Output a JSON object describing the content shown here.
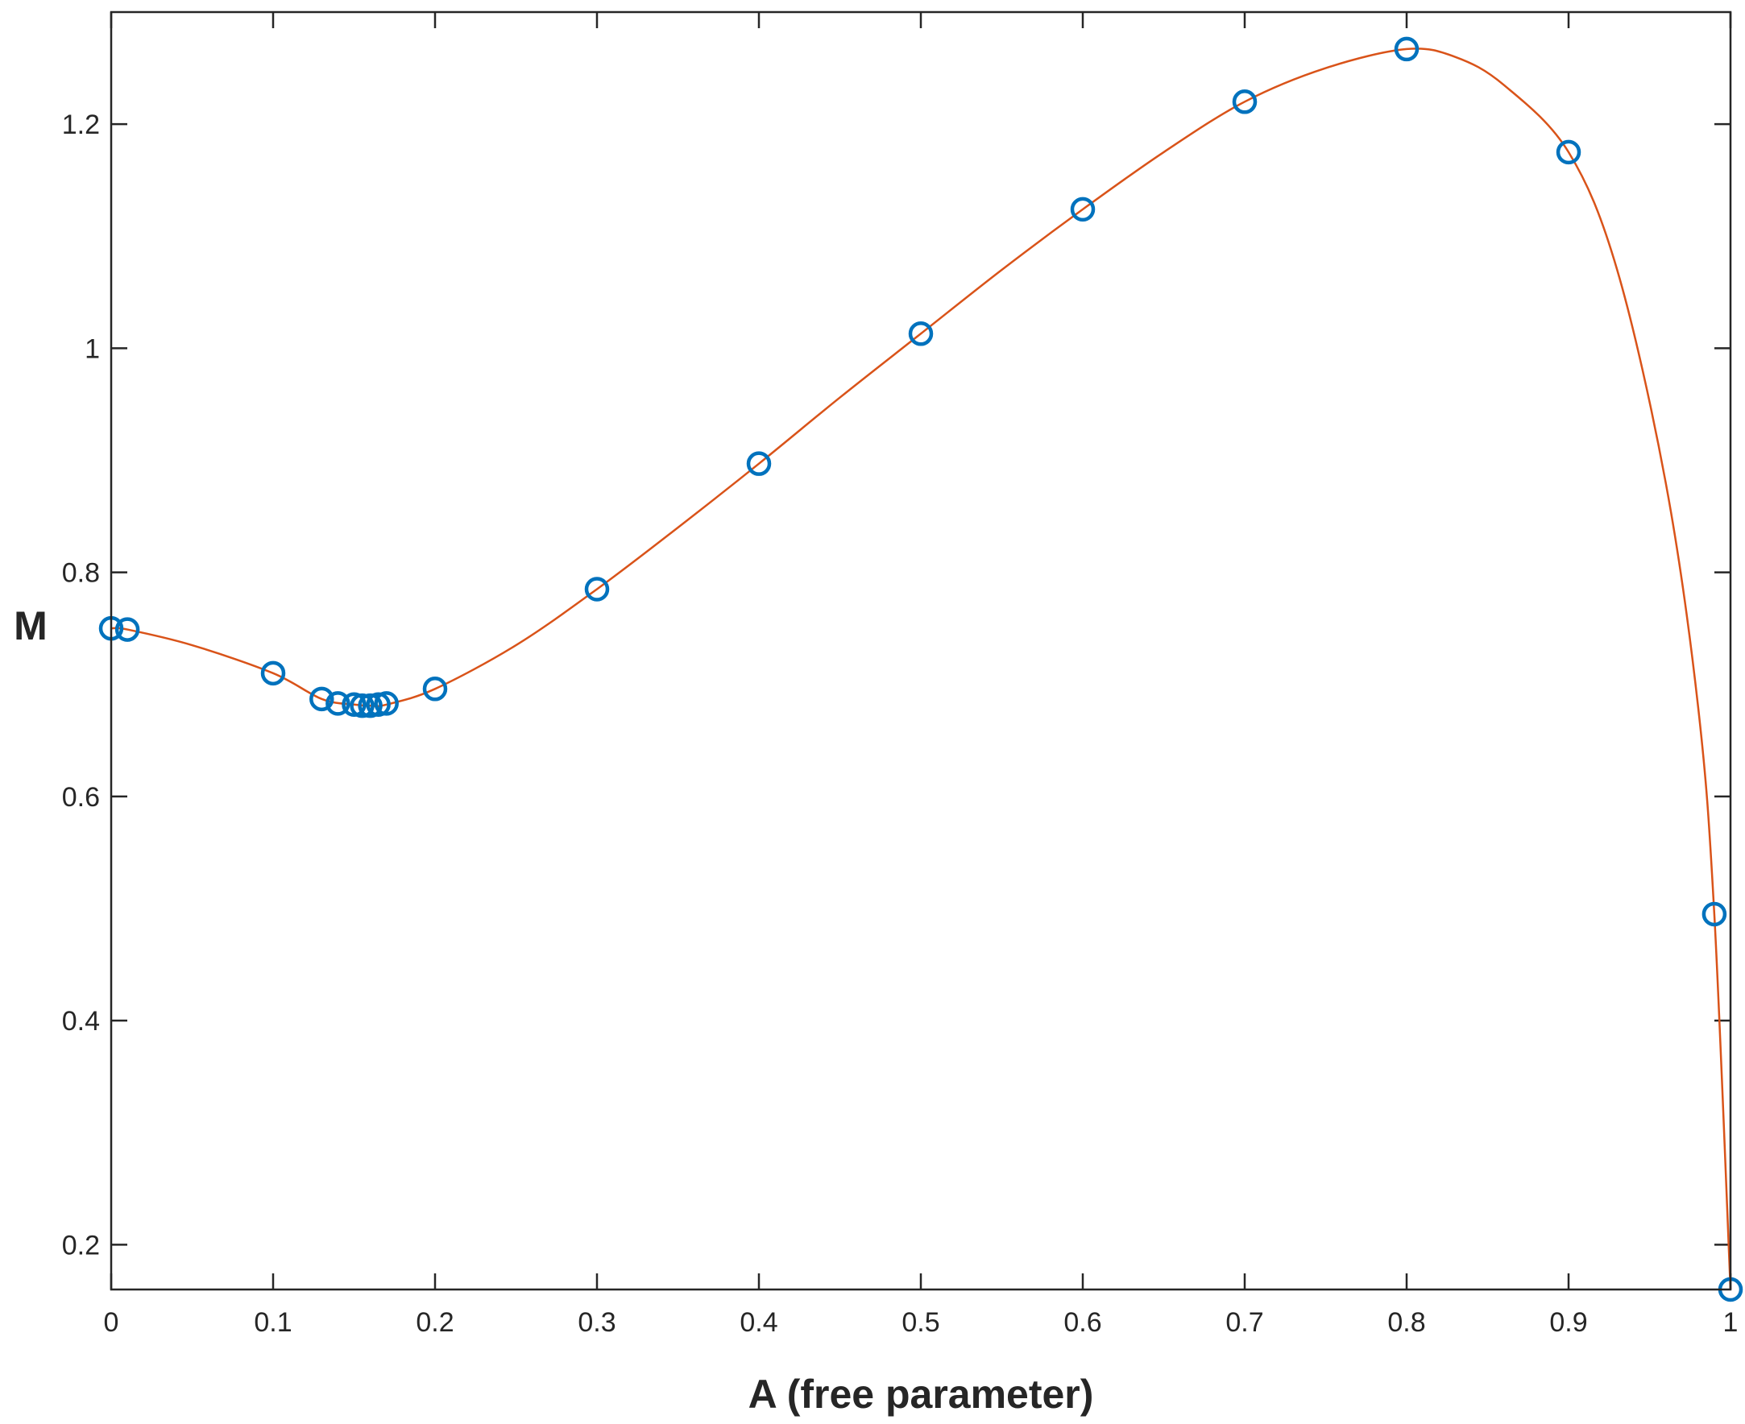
{
  "chart_data": {
    "type": "scatter",
    "title": "",
    "xlabel": "A (free parameter)",
    "ylabel": "M",
    "xlim": [
      0,
      1
    ],
    "ylim": [
      0.16,
      1.3
    ],
    "x_ticks": [
      0,
      0.1,
      0.2,
      0.3,
      0.4,
      0.5,
      0.6,
      0.7,
      0.8,
      0.9,
      1
    ],
    "x_tick_labels": [
      "0",
      "0.1",
      "0.2",
      "0.3",
      "0.4",
      "0.5",
      "0.6",
      "0.7",
      "0.8",
      "0.9",
      "1"
    ],
    "y_ticks": [
      0.2,
      0.4,
      0.6,
      0.8,
      1.0,
      1.2
    ],
    "y_tick_labels": [
      "0.2",
      "0.4",
      "0.6",
      "0.8",
      "1",
      "1.2"
    ],
    "grid": false,
    "box": true,
    "series": [
      {
        "kind": "markers",
        "marker": "circle",
        "color": "#0072BD",
        "x": [
          0,
          0.01,
          0.1,
          0.13,
          0.14,
          0.15,
          0.155,
          0.16,
          0.165,
          0.17,
          0.2,
          0.3,
          0.4,
          0.5,
          0.6,
          0.7,
          0.8,
          0.9,
          0.99,
          1.0
        ],
        "y": [
          0.75,
          0.749,
          0.71,
          0.687,
          0.683,
          0.682,
          0.681,
          0.681,
          0.682,
          0.683,
          0.696,
          0.785,
          0.897,
          1.013,
          1.124,
          1.22,
          1.267,
          1.175,
          0.495,
          0.16
        ]
      },
      {
        "kind": "line",
        "color": "#D95319",
        "x": [
          0,
          0.01,
          0.05,
          0.1,
          0.13,
          0.15,
          0.16,
          0.17,
          0.2,
          0.25,
          0.3,
          0.35,
          0.4,
          0.45,
          0.5,
          0.55,
          0.6,
          0.65,
          0.7,
          0.75,
          0.8,
          0.83,
          0.86,
          0.9,
          0.93,
          0.96,
          0.98,
          0.99,
          1.0
        ],
        "y": [
          0.75,
          0.749,
          0.735,
          0.71,
          0.687,
          0.682,
          0.681,
          0.682,
          0.696,
          0.735,
          0.785,
          0.84,
          0.897,
          0.956,
          1.013,
          1.07,
          1.124,
          1.175,
          1.22,
          1.25,
          1.267,
          1.26,
          1.235,
          1.175,
          1.07,
          0.88,
          0.68,
          0.495,
          0.16
        ]
      }
    ]
  }
}
